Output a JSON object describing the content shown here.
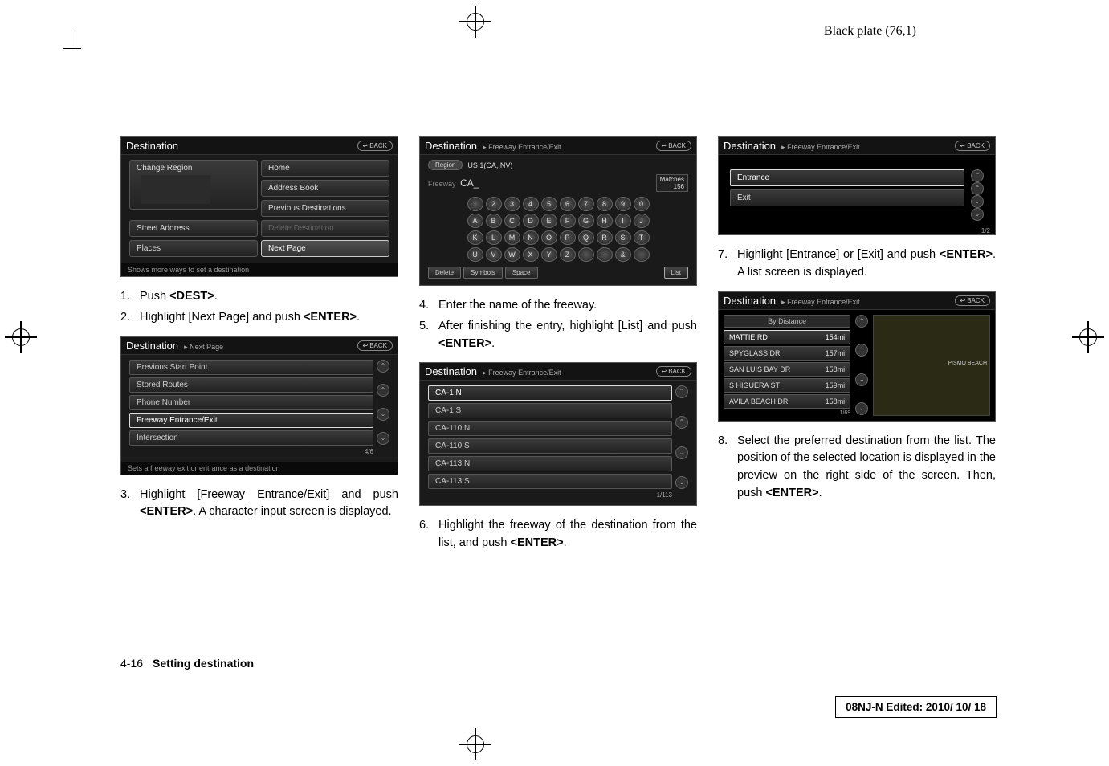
{
  "header": {
    "plate": "Black plate (76,1)"
  },
  "col1": {
    "ss1": {
      "title": "Destination",
      "back": "BACK",
      "buttons": {
        "change_region": "Change Region",
        "home": "Home",
        "address_book": "Address Book",
        "prev_dest": "Previous Destinations",
        "street_addr": "Street Address",
        "delete_dest": "Delete Destination",
        "places": "Places",
        "next_page": "Next Page"
      },
      "footer": "Shows more ways to set a destination"
    },
    "step1": {
      "n": "1.",
      "t_a": "Push ",
      "kw": "<DEST>",
      "t_b": "."
    },
    "step2": {
      "n": "2.",
      "t_a": "Highlight [Next Page] and push ",
      "kw": "<ENTER>",
      "t_b": "."
    },
    "ss2": {
      "title": "Destination",
      "sub": "Next Page",
      "back": "BACK",
      "rows": {
        "r1": "Previous Start Point",
        "r2": "Stored Routes",
        "r3": "Phone Number",
        "r4": "Freeway Entrance/Exit",
        "r5": "Intersection"
      },
      "counter": "4/6",
      "footer": "Sets a freeway exit or entrance as a destination"
    },
    "step3": {
      "n": "3.",
      "t_a": "Highlight [Freeway Entrance/Exit] and push ",
      "kw": "<ENTER>",
      "t_b": ". A character input screen is displayed."
    }
  },
  "col2": {
    "ss3": {
      "title": "Destination",
      "sub": "Freeway Entrance/Exit",
      "back": "BACK",
      "region_lbl": "Region",
      "region_val": "US 1(CA, NV)",
      "freeway_lbl": "Freeway",
      "freeway_val": "CA_",
      "matches_lbl": "Matches",
      "matches_val": "156",
      "numrow": [
        "1",
        "2",
        "3",
        "4",
        "5",
        "6",
        "7",
        "8",
        "9",
        "0"
      ],
      "letrow1": [
        "A",
        "B",
        "C",
        "D",
        "E",
        "F",
        "G",
        "H",
        "I",
        "J"
      ],
      "letrow2": [
        "K",
        "L",
        "M",
        "N",
        "O",
        "P",
        "Q",
        "R",
        "S",
        "T"
      ],
      "letrow3": [
        "U",
        "V",
        "W",
        "X",
        "Y",
        "Z",
        " ",
        "-",
        "&",
        " "
      ],
      "fn": {
        "del": "Delete",
        "sym": "Symbols",
        "space": "Space",
        "list": "List"
      }
    },
    "step4": {
      "n": "4.",
      "t": "Enter the name of the freeway."
    },
    "step5": {
      "n": "5.",
      "t_a": "After finishing the entry, highlight [List] and push ",
      "kw": "<ENTER>",
      "t_b": "."
    },
    "ss4": {
      "title": "Destination",
      "sub": "Freeway Entrance/Exit",
      "back": "BACK",
      "rows": {
        "r1": "CA-1 N",
        "r2": "CA-1 S",
        "r3": "CA-110 N",
        "r4": "CA-110 S",
        "r5": "CA-113 N",
        "r6": "CA-113 S"
      },
      "counter": "1/113"
    },
    "step6": {
      "n": "6.",
      "t_a": "Highlight the freeway of the destination from the list, and push ",
      "kw": "<ENTER>",
      "t_b": "."
    }
  },
  "col3": {
    "ss5": {
      "title": "Destination",
      "sub": "Freeway Entrance/Exit",
      "back": "BACK",
      "rows": {
        "r1": "Entrance",
        "r2": "Exit"
      },
      "counter": "1/2"
    },
    "step7": {
      "n": "7.",
      "t_a": "Highlight [Entrance] or [Exit] and push ",
      "kw": "<ENTER>",
      "t_b": ". A list screen is displayed."
    },
    "ss6": {
      "title": "Destination",
      "sub": "Freeway Entrance/Exit",
      "back": "BACK",
      "by_dist": "By Distance",
      "rows": {
        "r1": {
          "name": "MATTIE RD",
          "dist": "154mi"
        },
        "r2": {
          "name": "SPYGLASS DR",
          "dist": "157mi"
        },
        "r3": {
          "name": "SAN LUIS BAY DR",
          "dist": "158mi"
        },
        "r4": {
          "name": "S HIGUERA ST",
          "dist": "159mi"
        },
        "r5": {
          "name": "AVILA BEACH DR",
          "dist": "158mi"
        }
      },
      "map_label": "PISMO BEACH",
      "counter": "1/69"
    },
    "step8": {
      "n": "8.",
      "t_a": "Select the preferred destination from the list. The position of the selected location is displayed in the preview on the right side of the screen. Then, push ",
      "kw": "<ENTER>",
      "t_b": "."
    }
  },
  "footer": {
    "page": "4-16",
    "section": "Setting destination"
  },
  "editbox": "08NJ-N Edited:  2010/ 10/ 18"
}
